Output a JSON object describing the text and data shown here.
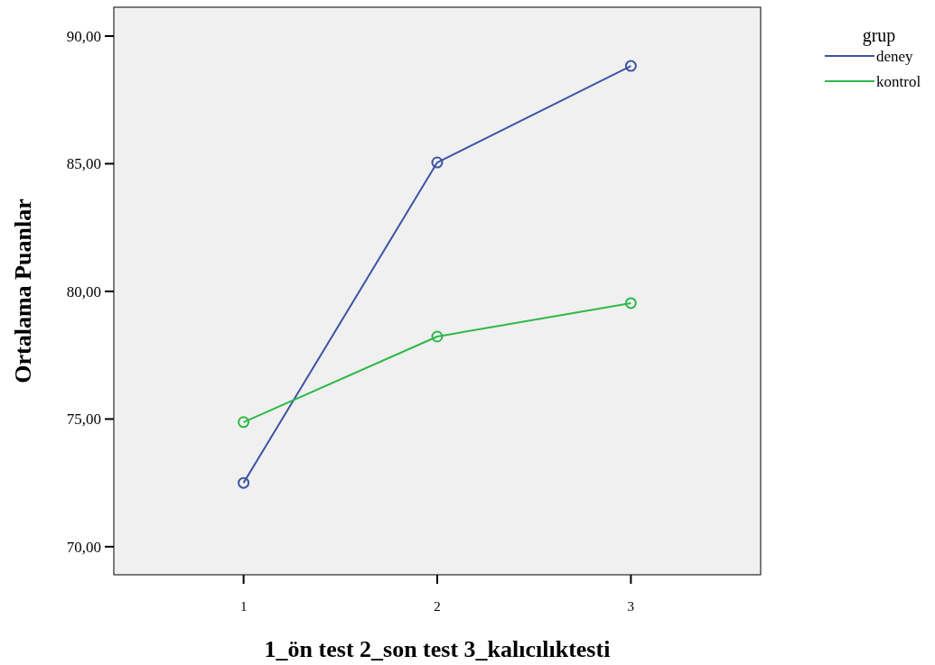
{
  "chart_data": {
    "type": "line",
    "xlabel": "1_ön test   2_son test   3_kalıcılıktesti",
    "ylabel": "Ortalama Puanlar",
    "legend_title": "grup",
    "x": [
      1,
      2,
      3
    ],
    "series": [
      {
        "name": "deney",
        "color": "#3e53a4",
        "values": [
          72.5,
          85.05,
          88.83
        ]
      },
      {
        "name": "kontrol",
        "color": "#2eb848",
        "values": [
          74.88,
          78.23,
          79.54
        ]
      }
    ],
    "xlim": [
      0.33,
      3.67
    ],
    "xticks": [
      1,
      2,
      3
    ],
    "ylim": [
      68.9,
      91.13
    ],
    "yticks": [
      {
        "value": 70,
        "label": "70,00"
      },
      {
        "value": 75,
        "label": "75,00"
      },
      {
        "value": 80,
        "label": "80,00"
      },
      {
        "value": 85,
        "label": "85,00"
      },
      {
        "value": 90,
        "label": "90,00"
      }
    ],
    "grid": false,
    "legend": "top right",
    "marker": "circle",
    "line_style": "solid"
  }
}
